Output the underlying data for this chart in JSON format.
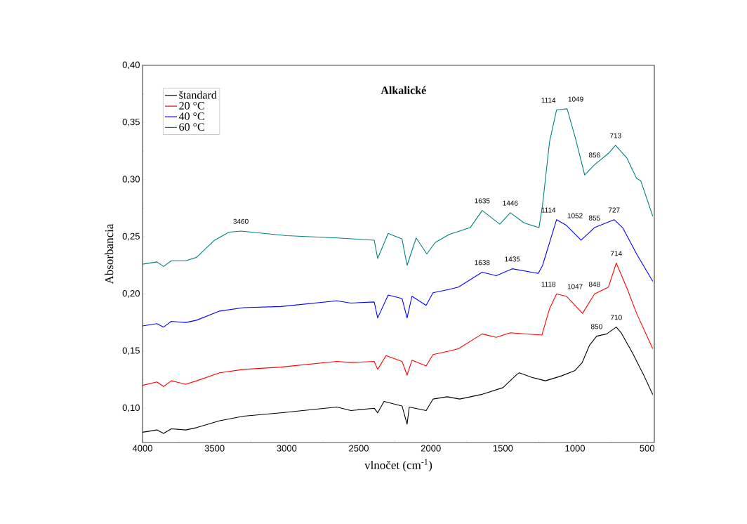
{
  "chart_data": {
    "type": "line",
    "title": "Alkalické",
    "xlabel": "vlnočet (cm$^{-1}$)",
    "ylabel": "Absorbancia",
    "xlim": [
      4000,
      450
    ],
    "ylim": [
      0.07,
      0.4
    ],
    "xticks": [
      4000,
      3500,
      3000,
      2500,
      2000,
      1500,
      1000,
      500
    ],
    "yticks": [
      {
        "value": 0.1,
        "label": "0,10"
      },
      {
        "value": 0.15,
        "label": "0,15"
      },
      {
        "value": 0.2,
        "label": "0,20"
      },
      {
        "value": 0.25,
        "label": "0,25"
      },
      {
        "value": 0.3,
        "label": "0,30"
      },
      {
        "value": 0.35,
        "label": "0,35"
      },
      {
        "value": 0.4,
        "label": "0,40"
      }
    ],
    "grid": false,
    "legend": "top left",
    "marker": "none",
    "line_style": "solid",
    "series": [
      {
        "name": "štandard",
        "color": "#000000",
        "x": [
          4000,
          3900,
          3854,
          3800,
          3700,
          3625,
          3465,
          3300,
          3041,
          2652,
          2554,
          2393,
          2369,
          2325,
          2200,
          2165,
          2150,
          2033,
          1985,
          1887,
          1800,
          1650,
          1500,
          1400,
          1386,
          1300,
          1206,
          1100,
          1000,
          950,
          900,
          850,
          780,
          714,
          680,
          600,
          520,
          461
        ],
        "values": [
          0.079,
          0.081,
          0.078,
          0.082,
          0.081,
          0.083,
          0.089,
          0.093,
          0.096,
          0.101,
          0.098,
          0.1,
          0.096,
          0.106,
          0.102,
          0.086,
          0.101,
          0.098,
          0.108,
          0.11,
          0.108,
          0.112,
          0.118,
          0.13,
          0.131,
          0.127,
          0.124,
          0.128,
          0.133,
          0.14,
          0.155,
          0.163,
          0.165,
          0.171,
          0.166,
          0.148,
          0.128,
          0.112
        ]
      },
      {
        "name": "20 °C",
        "color": "#ff0000",
        "x": [
          4000,
          3900,
          3854,
          3800,
          3700,
          3625,
          3465,
          3300,
          3041,
          2652,
          2554,
          2393,
          2369,
          2311,
          2200,
          2165,
          2131,
          2033,
          1985,
          1873,
          1809,
          1644,
          1547,
          1449,
          1230,
          1177,
          1128,
          1060,
          948,
          865,
          768,
          714,
          640,
          573,
          461
        ],
        "values": [
          0.12,
          0.123,
          0.119,
          0.124,
          0.121,
          0.124,
          0.131,
          0.134,
          0.136,
          0.141,
          0.14,
          0.141,
          0.134,
          0.146,
          0.141,
          0.129,
          0.142,
          0.137,
          0.147,
          0.15,
          0.152,
          0.165,
          0.162,
          0.166,
          0.164,
          0.187,
          0.2,
          0.198,
          0.183,
          0.2,
          0.206,
          0.227,
          0.205,
          0.183,
          0.152
        ]
      },
      {
        "name": "40 °C",
        "color": "#0000ff",
        "x": [
          4000,
          3900,
          3854,
          3800,
          3700,
          3625,
          3465,
          3300,
          3041,
          2652,
          2554,
          2393,
          2369,
          2296,
          2200,
          2165,
          2131,
          2033,
          1985,
          1873,
          1809,
          1644,
          1547,
          1435,
          1255,
          1225,
          1128,
          1060,
          958,
          865,
          729,
          670,
          573,
          461
        ],
        "values": [
          0.172,
          0.174,
          0.171,
          0.176,
          0.175,
          0.177,
          0.185,
          0.188,
          0.189,
          0.194,
          0.192,
          0.193,
          0.179,
          0.199,
          0.196,
          0.179,
          0.198,
          0.19,
          0.201,
          0.204,
          0.206,
          0.219,
          0.216,
          0.222,
          0.218,
          0.225,
          0.265,
          0.26,
          0.247,
          0.258,
          0.265,
          0.258,
          0.235,
          0.211
        ]
      },
      {
        "name": "60 °C",
        "color": "#008080",
        "x": [
          4000,
          3900,
          3854,
          3800,
          3700,
          3625,
          3500,
          3400,
          3318,
          3000,
          2652,
          2393,
          2369,
          2296,
          2200,
          2165,
          2102,
          2028,
          1970,
          1873,
          1727,
          1644,
          1522,
          1449,
          1352,
          1250,
          1225,
          1177,
          1128,
          1055,
          997,
          933,
          865,
          768,
          719,
          641,
          573,
          544,
          461
        ],
        "values": [
          0.226,
          0.228,
          0.224,
          0.229,
          0.229,
          0.232,
          0.247,
          0.254,
          0.255,
          0.251,
          0.249,
          0.247,
          0.231,
          0.253,
          0.248,
          0.225,
          0.249,
          0.235,
          0.245,
          0.252,
          0.258,
          0.273,
          0.261,
          0.271,
          0.262,
          0.258,
          0.278,
          0.333,
          0.361,
          0.362,
          0.336,
          0.304,
          0.313,
          0.323,
          0.33,
          0.319,
          0.301,
          0.299,
          0.268
        ]
      }
    ],
    "annotations": [
      {
        "text": "3460",
        "x": 3318,
        "y": 0.255
      },
      {
        "text": "1635",
        "x": 1644,
        "y": 0.273
      },
      {
        "text": "1446",
        "x": 1449,
        "y": 0.271
      },
      {
        "text": "1114",
        "x": 1128,
        "y": 0.361
      },
      {
        "text": "1049",
        "x": 1055,
        "y": 0.362
      },
      {
        "text": "856",
        "x": 865,
        "y": 0.313
      },
      {
        "text": "713",
        "x": 719,
        "y": 0.33
      },
      {
        "text": "1114",
        "x": 1128,
        "y": 0.265
      },
      {
        "text": "1052",
        "x": 1060,
        "y": 0.26
      },
      {
        "text": "855",
        "x": 865,
        "y": 0.258
      },
      {
        "text": "727",
        "x": 729,
        "y": 0.265
      },
      {
        "text": "1638",
        "x": 1644,
        "y": 0.219
      },
      {
        "text": "1435",
        "x": 1435,
        "y": 0.222
      },
      {
        "text": "1118",
        "x": 1128,
        "y": 0.2
      },
      {
        "text": "1047",
        "x": 1060,
        "y": 0.198
      },
      {
        "text": "848",
        "x": 865,
        "y": 0.2
      },
      {
        "text": "714",
        "x": 714,
        "y": 0.227
      },
      {
        "text": "850",
        "x": 850,
        "y": 0.163
      },
      {
        "text": "710",
        "x": 714,
        "y": 0.171
      }
    ]
  }
}
